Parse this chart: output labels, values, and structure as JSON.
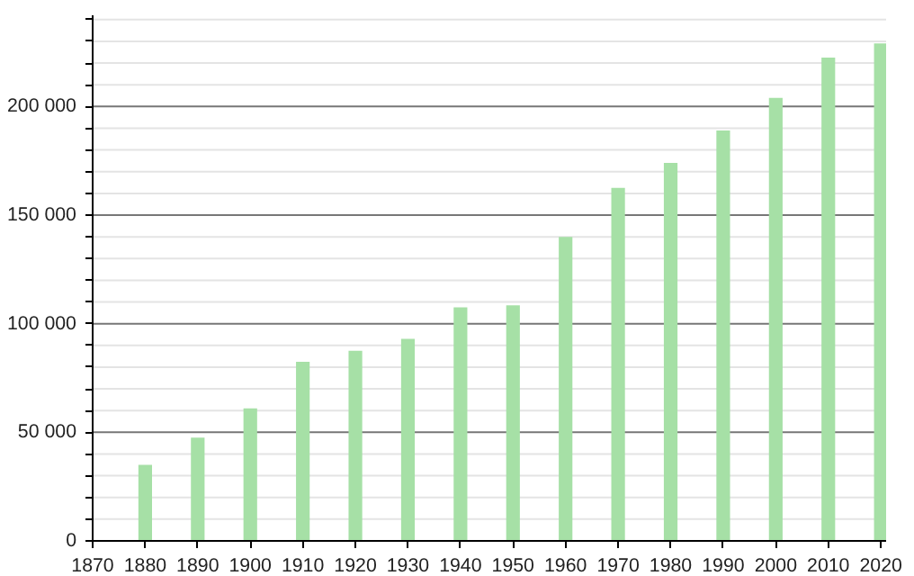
{
  "chart_data": {
    "type": "bar",
    "x": [
      1880,
      1890,
      1900,
      1910,
      1920,
      1930,
      1940,
      1950,
      1960,
      1970,
      1980,
      1990,
      2000,
      2010,
      2020
    ],
    "values": [
      35000,
      47500,
      61000,
      82500,
      87500,
      93000,
      107500,
      108500,
      140000,
      162500,
      174000,
      189000,
      204000,
      222500,
      229000
    ],
    "color": "#a6e0a6",
    "xlim": [
      1870,
      2021
    ],
    "xticks": [
      1870,
      1880,
      1890,
      1900,
      1910,
      1920,
      1930,
      1940,
      1950,
      1960,
      1970,
      1980,
      1990,
      2000,
      2010,
      2020
    ],
    "ylim": [
      0,
      242000
    ],
    "yticks": [
      {
        "value": 0,
        "label": "0"
      },
      {
        "value": 10000,
        "label": null
      },
      {
        "value": 20000,
        "label": null
      },
      {
        "value": 30000,
        "label": null
      },
      {
        "value": 40000,
        "label": null
      },
      {
        "value": 50000,
        "label": "50 000"
      },
      {
        "value": 60000,
        "label": null
      },
      {
        "value": 70000,
        "label": null
      },
      {
        "value": 80000,
        "label": null
      },
      {
        "value": 90000,
        "label": null
      },
      {
        "value": 100000,
        "label": "100 000"
      },
      {
        "value": 110000,
        "label": null
      },
      {
        "value": 120000,
        "label": null
      },
      {
        "value": 130000,
        "label": null
      },
      {
        "value": 140000,
        "label": null
      },
      {
        "value": 150000,
        "label": "150 000"
      },
      {
        "value": 160000,
        "label": null
      },
      {
        "value": 170000,
        "label": null
      },
      {
        "value": 180000,
        "label": null
      },
      {
        "value": 190000,
        "label": null
      },
      {
        "value": 200000,
        "label": "200 000"
      },
      {
        "value": 210000,
        "label": null
      },
      {
        "value": 220000,
        "label": null
      },
      {
        "value": 230000,
        "label": null
      },
      {
        "value": 240000,
        "label": null
      }
    ],
    "grid": "y"
  }
}
